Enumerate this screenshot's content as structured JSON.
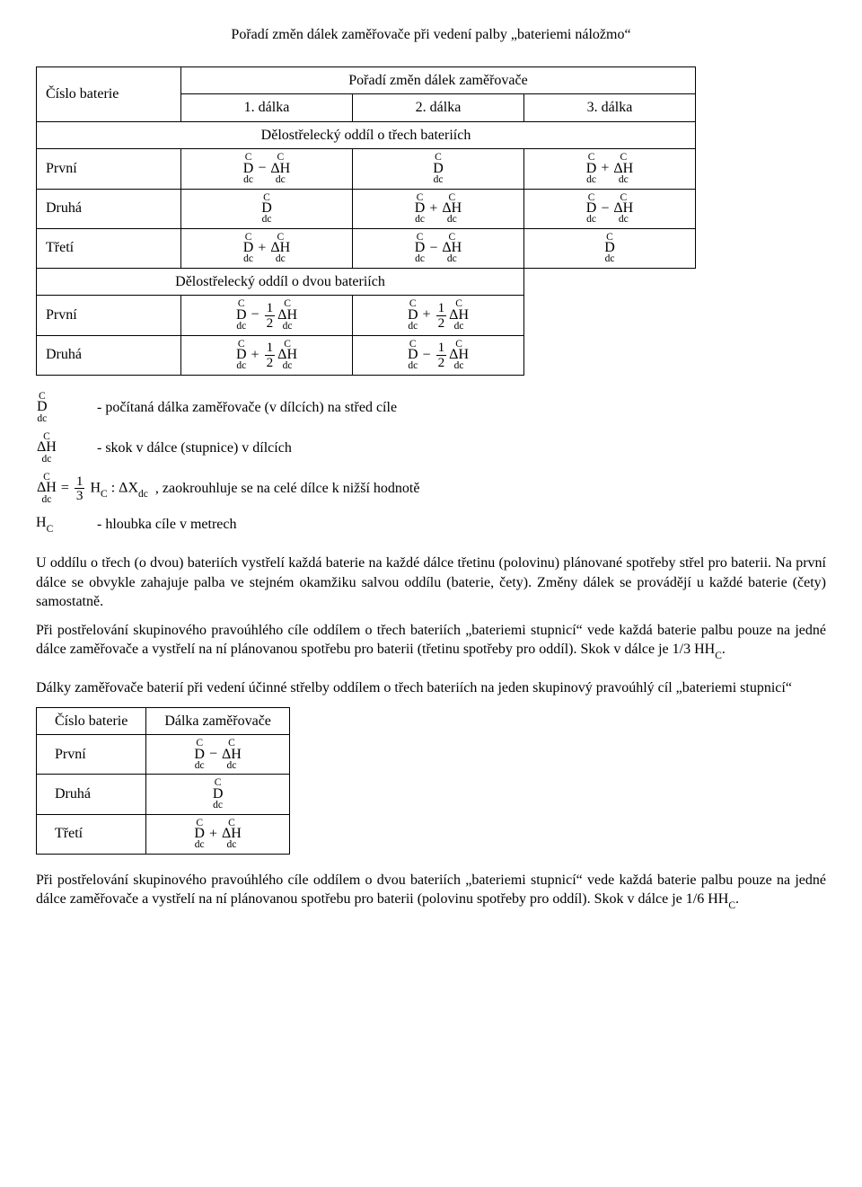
{
  "title": "Pořadí změn dálek zaměřovače při vedení palby „bateriemi náložmo“",
  "table1": {
    "h_col0": "Číslo baterie",
    "h_span": "Pořadí změn dálek zaměřovače",
    "h_c1": "1. dálka",
    "h_c2": "2. dálka",
    "h_c3": "3. dálka",
    "section3": "Dělostřelecký oddíl o třech bateriích",
    "r1": "První",
    "r2": "Druhá",
    "r3": "Třetí",
    "section2": "Dělostřelecký oddíl o dvou bateriích",
    "r4": "První",
    "r5": "Druhá"
  },
  "defs": {
    "d_txt": "- počítaná dálka zaměřovače (v dílcích) na střed cíle",
    "h_txt": "- skok v dálce (stupnice) v dílcích",
    "formula_tail": ", zaokrouhluje se na celé dílce k nižší hodnotě",
    "hc_txt": "- hloubka cíle v metrech"
  },
  "para1": "U oddílu o třech (o dvou) bateriích vystřelí každá baterie na každé dálce třetinu (polovinu) plánované spotřeby střel pro baterii. Na první dálce se obvykle zahajuje palba ve stejném okamžiku salvou oddílu (baterie, čety). Změny dálek se provádějí u každé baterie (čety) samostatně.",
  "para2a": "Při postřelování skupinového pravoúhlého cíle oddílem o třech bateriích „bateriemi stupnicí“ vede každá baterie palbu pouze na jedné dálce zaměřovače a vystřelí na ní plánovanou spotřebu pro baterii (třetinu spotřeby pro oddíl). Skok v dálce je 1/3 H",
  "para2b": ".",
  "subhead": "Dálky zaměřovače baterií při vedení účinné střelby oddílem o třech bateriích na jeden skupinový pravoúhlý cíl „bateriemi stupnicí“",
  "table2": {
    "h0": "Číslo baterie",
    "h1": "Dálka zaměřovače",
    "r1": "První",
    "r2": "Druhá",
    "r3": "Třetí"
  },
  "para3a": "Při postřelování skupinového pravoúhlého cíle oddílem o dvou bateriích „bateriemi stupnicí“ vede každá baterie palbu pouze na jedné dálce zaměřovače a vystřelí na ní plánovanou spotřebu pro baterii (polovinu spotřeby pro oddíl). Skok v dálce je 1/6 H",
  "para3b": "."
}
